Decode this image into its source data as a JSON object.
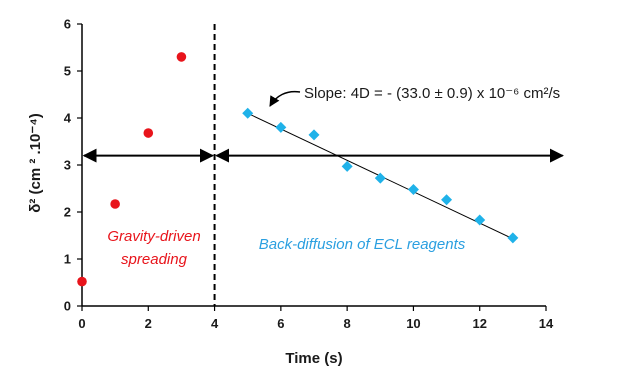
{
  "chart_data": {
    "type": "scatter",
    "xlabel": "Time (s)",
    "ylabel": "δ² (cm ² .10⁻⁴)",
    "xlim": [
      0,
      14
    ],
    "ylim": [
      0,
      6
    ],
    "xticks": [
      "0",
      "2",
      "4",
      "6",
      "8",
      "10",
      "12",
      "14"
    ],
    "yticks": [
      "0",
      "1",
      "2",
      "3",
      "4",
      "5",
      "6"
    ],
    "grid": false,
    "legend": "none",
    "series": [
      {
        "color": "#e8141b",
        "marker": "circle",
        "x": [
          0,
          1,
          2,
          3
        ],
        "y": [
          0.52,
          2.17,
          3.68,
          5.3
        ]
      },
      {
        "color": "#1fb2e9",
        "marker": "diamond",
        "x": [
          5,
          6,
          7,
          8,
          9,
          10,
          11,
          12,
          13
        ],
        "y": [
          4.1,
          3.8,
          3.64,
          2.97,
          2.72,
          2.48,
          2.26,
          1.83,
          1.45
        ]
      }
    ],
    "fit_line": {
      "color": "#000000",
      "x": [
        5,
        13
      ],
      "y": [
        4.1,
        1.43
      ]
    },
    "vertical_divider": {
      "x": 4,
      "style": "dashed"
    },
    "region_arrows": {
      "y": 3.2,
      "left": [
        0,
        4
      ],
      "right": [
        4,
        14.5
      ]
    },
    "annotations": {
      "slope": "Slope: 4D = - (33.0 ± 0.9) x 10⁻⁶ cm²/s",
      "region_left_line1": "Gravity-driven",
      "region_left_line2": "spreading",
      "region_right": "Back-diffusion of ECL reagents"
    }
  }
}
